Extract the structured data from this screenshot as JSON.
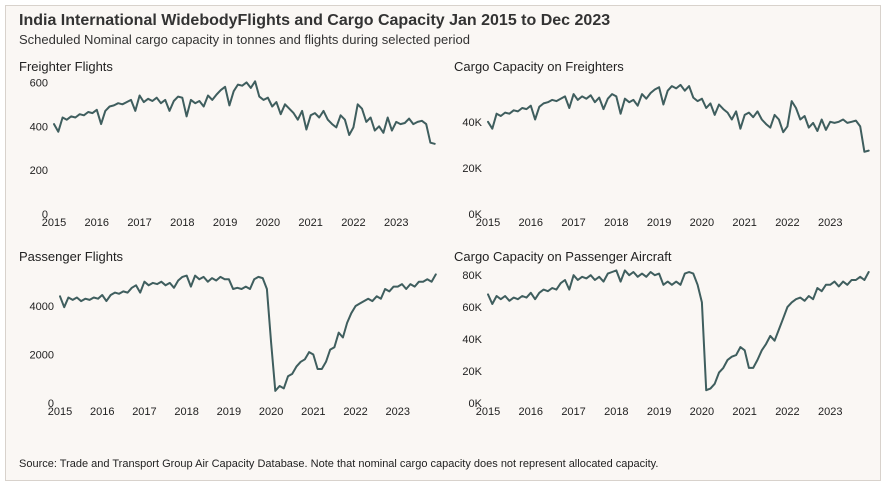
{
  "title": "India International WidebodyFlights and Cargo Capacity Jan 2015 to Dec 2023",
  "subtitle": "Scheduled Nominal cargo capacity in tonnes and flights during selected period",
  "source": "Source: Trade and Transport Group Air Capacity Database. Note that nominal cargo capacity does not represent allocated capacity.",
  "series_color": "#3f5e5e",
  "chart_data": [
    {
      "type": "line",
      "title": "Freighter Flights",
      "x_ticks": [
        "2015",
        "2016",
        "2017",
        "2018",
        "2019",
        "2020",
        "2021",
        "2022",
        "2023"
      ],
      "y_ticks": [
        0,
        200,
        400,
        600
      ],
      "y_tick_labels": [
        "0",
        "200",
        "400",
        "600"
      ],
      "ylim": [
        0,
        620
      ],
      "xlim": [
        2015.0,
        2024.0
      ],
      "series": [
        {
          "x": [
            2015.0,
            2015.1,
            2015.2,
            2015.3,
            2015.4,
            2015.5,
            2015.6,
            2015.7,
            2015.8,
            2015.9,
            2016.0,
            2016.1,
            2016.2,
            2016.3,
            2016.4,
            2016.5,
            2016.6,
            2016.7,
            2016.8,
            2016.9,
            2017.0,
            2017.1,
            2017.2,
            2017.3,
            2017.4,
            2017.5,
            2017.6,
            2017.7,
            2017.8,
            2017.9,
            2018.0,
            2018.1,
            2018.2,
            2018.3,
            2018.4,
            2018.5,
            2018.6,
            2018.7,
            2018.8,
            2018.9,
            2019.0,
            2019.1,
            2019.2,
            2019.3,
            2019.4,
            2019.5,
            2019.6,
            2019.7,
            2019.8,
            2019.9,
            2020.0,
            2020.1,
            2020.2,
            2020.3,
            2020.4,
            2020.5,
            2020.6,
            2020.7,
            2020.8,
            2020.9,
            2021.0,
            2021.1,
            2021.2,
            2021.3,
            2021.4,
            2021.5,
            2021.6,
            2021.7,
            2021.8,
            2021.9,
            2022.0,
            2022.1,
            2022.2,
            2022.3,
            2022.4,
            2022.5,
            2022.6,
            2022.7,
            2022.8,
            2022.9,
            2023.0,
            2023.1,
            2023.2,
            2023.3,
            2023.4,
            2023.5,
            2023.6,
            2023.7,
            2023.8,
            2023.9
          ],
          "y": [
            410,
            375,
            440,
            430,
            445,
            440,
            455,
            450,
            465,
            460,
            475,
            410,
            470,
            490,
            495,
            505,
            500,
            510,
            520,
            470,
            540,
            510,
            525,
            515,
            530,
            505,
            520,
            470,
            515,
            535,
            530,
            445,
            520,
            505,
            515,
            490,
            540,
            520,
            545,
            565,
            580,
            495,
            560,
            590,
            585,
            600,
            575,
            605,
            535,
            520,
            530,
            490,
            510,
            455,
            500,
            480,
            460,
            430,
            470,
            385,
            450,
            460,
            440,
            470,
            430,
            410,
            395,
            450,
            430,
            360,
            395,
            500,
            480,
            420,
            440,
            380,
            400,
            370,
            440,
            380,
            420,
            410,
            415,
            435,
            410,
            420,
            425,
            410,
            325,
            320
          ]
        }
      ]
    },
    {
      "type": "line",
      "title": "Cargo Capacity on Freighters",
      "x_ticks": [
        "2015",
        "2016",
        "2017",
        "2018",
        "2019",
        "2020",
        "2021",
        "2022",
        "2023"
      ],
      "y_ticks": [
        0,
        20000,
        40000
      ],
      "y_tick_labels": [
        "0K",
        "20K",
        "40K"
      ],
      "ylim": [
        0,
        59000
      ],
      "xlim": [
        2015.0,
        2024.0
      ],
      "series": [
        {
          "x": [
            2015.0,
            2015.1,
            2015.2,
            2015.3,
            2015.4,
            2015.5,
            2015.6,
            2015.7,
            2015.8,
            2015.9,
            2016.0,
            2016.1,
            2016.2,
            2016.3,
            2016.4,
            2016.5,
            2016.6,
            2016.7,
            2016.8,
            2016.9,
            2017.0,
            2017.1,
            2017.2,
            2017.3,
            2017.4,
            2017.5,
            2017.6,
            2017.7,
            2017.8,
            2017.9,
            2018.0,
            2018.1,
            2018.2,
            2018.3,
            2018.4,
            2018.5,
            2018.6,
            2018.7,
            2018.8,
            2018.9,
            2019.0,
            2019.1,
            2019.2,
            2019.3,
            2019.4,
            2019.5,
            2019.6,
            2019.7,
            2019.8,
            2019.9,
            2020.0,
            2020.1,
            2020.2,
            2020.3,
            2020.4,
            2020.5,
            2020.6,
            2020.7,
            2020.8,
            2020.9,
            2021.0,
            2021.1,
            2021.2,
            2021.3,
            2021.4,
            2021.5,
            2021.6,
            2021.7,
            2021.8,
            2021.9,
            2022.0,
            2022.1,
            2022.2,
            2022.3,
            2022.4,
            2022.5,
            2022.6,
            2022.7,
            2022.8,
            2022.9,
            2023.0,
            2023.1,
            2023.2,
            2023.3,
            2023.4,
            2023.5,
            2023.6,
            2023.7,
            2023.8,
            2023.9
          ],
          "y": [
            40000,
            37000,
            43500,
            42500,
            44000,
            43500,
            45000,
            44500,
            46000,
            45500,
            47000,
            41000,
            46500,
            48000,
            48500,
            49500,
            49000,
            50000,
            51000,
            46000,
            52000,
            49500,
            51000,
            50000,
            51500,
            48500,
            50500,
            45500,
            50000,
            52000,
            51000,
            43500,
            50000,
            48500,
            49500,
            47000,
            52000,
            50000,
            52500,
            54000,
            55000,
            47500,
            53500,
            55500,
            54500,
            56000,
            53500,
            55500,
            50500,
            49000,
            50000,
            46000,
            48000,
            43000,
            47500,
            45500,
            44000,
            41000,
            44500,
            37000,
            43000,
            44000,
            42000,
            44500,
            41000,
            39000,
            37500,
            43000,
            41000,
            35500,
            38000,
            49000,
            46000,
            41000,
            42500,
            37500,
            39500,
            36000,
            41000,
            36500,
            40000,
            39500,
            40000,
            41000,
            39500,
            40000,
            40500,
            38000,
            27000,
            27500
          ]
        }
      ]
    },
    {
      "type": "line",
      "title": "Passenger Flights",
      "x_ticks": [
        "2015",
        "2016",
        "2017",
        "2018",
        "2019",
        "2020",
        "2021",
        "2022",
        "2023"
      ],
      "y_ticks": [
        0,
        2000,
        4000
      ],
      "y_tick_labels": [
        "0",
        "2000",
        "4000"
      ],
      "ylim": [
        0,
        5400
      ],
      "xlim": [
        2015.0,
        2024.0
      ],
      "series": [
        {
          "x": [
            2015.0,
            2015.1,
            2015.2,
            2015.3,
            2015.4,
            2015.5,
            2015.6,
            2015.7,
            2015.8,
            2015.9,
            2016.0,
            2016.1,
            2016.2,
            2016.3,
            2016.4,
            2016.5,
            2016.6,
            2016.7,
            2016.8,
            2016.9,
            2017.0,
            2017.1,
            2017.2,
            2017.3,
            2017.4,
            2017.5,
            2017.6,
            2017.7,
            2017.8,
            2017.9,
            2018.0,
            2018.1,
            2018.2,
            2018.3,
            2018.4,
            2018.5,
            2018.6,
            2018.7,
            2018.8,
            2018.9,
            2019.0,
            2019.1,
            2019.2,
            2019.3,
            2019.4,
            2019.5,
            2019.6,
            2019.7,
            2019.8,
            2019.9,
            2020.0,
            2020.1,
            2020.2,
            2020.3,
            2020.4,
            2020.5,
            2020.6,
            2020.7,
            2020.8,
            2020.9,
            2021.0,
            2021.1,
            2021.2,
            2021.3,
            2021.4,
            2021.5,
            2021.6,
            2021.7,
            2021.8,
            2021.9,
            2022.0,
            2022.1,
            2022.2,
            2022.3,
            2022.4,
            2022.5,
            2022.6,
            2022.7,
            2022.8,
            2022.9,
            2023.0,
            2023.1,
            2023.2,
            2023.3,
            2023.4,
            2023.5,
            2023.6,
            2023.7,
            2023.8,
            2023.9
          ],
          "y": [
            4400,
            3950,
            4350,
            4250,
            4350,
            4200,
            4300,
            4250,
            4350,
            4300,
            4450,
            4200,
            4450,
            4550,
            4500,
            4600,
            4550,
            4750,
            4850,
            4550,
            5000,
            4850,
            4950,
            4900,
            5000,
            4850,
            4950,
            4750,
            5050,
            5200,
            5250,
            4800,
            5250,
            5100,
            5200,
            5000,
            5150,
            5050,
            5200,
            5100,
            5100,
            4700,
            4750,
            4700,
            4800,
            4700,
            5100,
            5200,
            5150,
            4700,
            2500,
            500,
            700,
            600,
            1100,
            1200,
            1500,
            1700,
            1800,
            2100,
            2000,
            1400,
            1400,
            1700,
            2200,
            2300,
            2900,
            2700,
            3300,
            3700,
            4000,
            4100,
            4200,
            4300,
            4200,
            4400,
            4300,
            4700,
            4600,
            4800,
            4800,
            4900,
            4700,
            4900,
            4800,
            5000,
            5000,
            5100,
            5000,
            5300
          ]
        }
      ]
    },
    {
      "type": "line",
      "title": "Cargo Capacity on Passenger Aircraft",
      "x_ticks": [
        "2015",
        "2016",
        "2017",
        "2018",
        "2019",
        "2020",
        "2021",
        "2022",
        "2023"
      ],
      "y_ticks": [
        0,
        20000,
        40000,
        60000,
        80000
      ],
      "y_tick_labels": [
        "0K",
        "20K",
        "40K",
        "60K",
        "80K"
      ],
      "ylim": [
        0,
        82000
      ],
      "xlim": [
        2015.0,
        2024.0
      ],
      "series": [
        {
          "x": [
            2015.0,
            2015.1,
            2015.2,
            2015.3,
            2015.4,
            2015.5,
            2015.6,
            2015.7,
            2015.8,
            2015.9,
            2016.0,
            2016.1,
            2016.2,
            2016.3,
            2016.4,
            2016.5,
            2016.6,
            2016.7,
            2016.8,
            2016.9,
            2017.0,
            2017.1,
            2017.2,
            2017.3,
            2017.4,
            2017.5,
            2017.6,
            2017.7,
            2017.8,
            2017.9,
            2018.0,
            2018.1,
            2018.2,
            2018.3,
            2018.4,
            2018.5,
            2018.6,
            2018.7,
            2018.8,
            2018.9,
            2019.0,
            2019.1,
            2019.2,
            2019.3,
            2019.4,
            2019.5,
            2019.6,
            2019.7,
            2019.8,
            2019.9,
            2020.0,
            2020.1,
            2020.2,
            2020.3,
            2020.4,
            2020.5,
            2020.6,
            2020.7,
            2020.8,
            2020.9,
            2021.0,
            2021.1,
            2021.2,
            2021.3,
            2021.4,
            2021.5,
            2021.6,
            2021.7,
            2021.8,
            2021.9,
            2022.0,
            2022.1,
            2022.2,
            2022.3,
            2022.4,
            2022.5,
            2022.6,
            2022.7,
            2022.8,
            2022.9,
            2023.0,
            2023.1,
            2023.2,
            2023.3,
            2023.4,
            2023.5,
            2023.6,
            2023.7,
            2023.8,
            2023.9
          ],
          "y": [
            68000,
            62000,
            67000,
            65000,
            67000,
            64000,
            66000,
            65000,
            67000,
            66000,
            69000,
            65000,
            69000,
            71000,
            70000,
            72000,
            71000,
            75000,
            77000,
            71000,
            80000,
            77000,
            79000,
            78000,
            80000,
            77000,
            79000,
            76000,
            81000,
            82000,
            83000,
            76000,
            83000,
            80000,
            82000,
            79000,
            81000,
            79000,
            82000,
            80000,
            81000,
            74000,
            76000,
            74000,
            76000,
            74000,
            81000,
            82000,
            81000,
            74000,
            63000,
            8000,
            9000,
            12000,
            19000,
            22000,
            27000,
            29000,
            30000,
            35000,
            33000,
            22000,
            22000,
            27000,
            33000,
            37000,
            42000,
            39000,
            46000,
            53000,
            60000,
            63000,
            65000,
            66000,
            64000,
            67000,
            65000,
            72000,
            70000,
            74000,
            74000,
            76000,
            73000,
            76000,
            74000,
            77000,
            77000,
            79000,
            77000,
            82000
          ]
        }
      ]
    }
  ]
}
